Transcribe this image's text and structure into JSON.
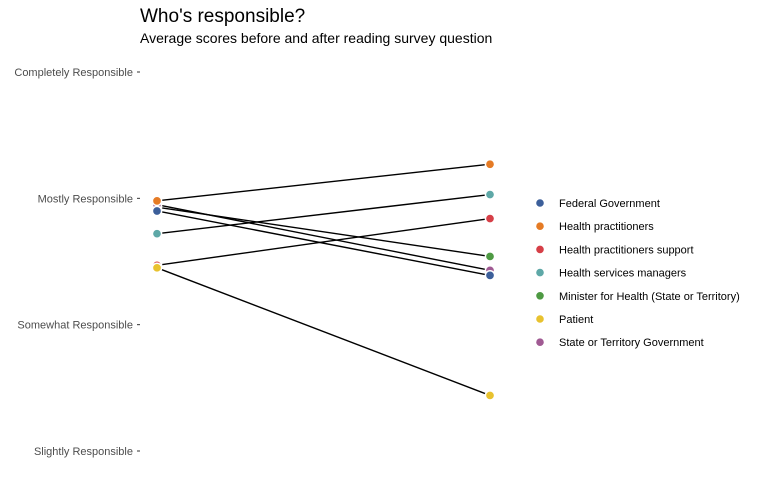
{
  "chart_data": {
    "type": "slope",
    "title": "Who's responsible?",
    "subtitle": "Average scores before and after reading survey question",
    "xlabel": "",
    "ylabel": "",
    "ylim": [
      1.0,
      4.0
    ],
    "y_ticks": [
      {
        "value": 4,
        "label": "Completely Responsible"
      },
      {
        "value": 3,
        "label": "Mostly Responsible"
      },
      {
        "value": 2,
        "label": "Somewhat Responsible"
      },
      {
        "value": 1,
        "label": "Slightly Responsible"
      }
    ],
    "grid": false,
    "legend_position": "right",
    "series": [
      {
        "name": "Federal Government",
        "color": "#3c5f9a",
        "before": 2.9,
        "after": 2.39
      },
      {
        "name": "Health practitioners",
        "color": "#e57b25",
        "before": 2.98,
        "after": 3.27
      },
      {
        "name": "Health practitioners support",
        "color": "#d63f47",
        "before": 2.47,
        "after": 2.84
      },
      {
        "name": "Health services managers",
        "color": "#5ea8a7",
        "before": 2.72,
        "after": 3.03
      },
      {
        "name": "Minister for Health (State or Territory)",
        "color": "#4e9a43",
        "before": 2.93,
        "after": 2.54
      },
      {
        "name": "Patient",
        "color": "#e8c22f",
        "before": 2.45,
        "after": 1.44
      },
      {
        "name": "State or Territory Government",
        "color": "#a05a93",
        "before": 2.95,
        "after": 2.43
      }
    ]
  }
}
